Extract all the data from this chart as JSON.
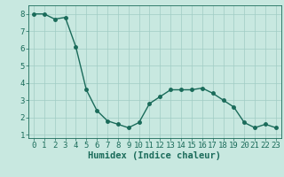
{
  "x": [
    0,
    1,
    2,
    3,
    4,
    5,
    6,
    7,
    8,
    9,
    10,
    11,
    12,
    13,
    14,
    15,
    16,
    17,
    18,
    19,
    20,
    21,
    22,
    23
  ],
  "y": [
    8.0,
    8.0,
    7.7,
    7.8,
    6.1,
    3.6,
    2.4,
    1.8,
    1.6,
    1.4,
    1.7,
    2.8,
    3.2,
    3.6,
    3.6,
    3.6,
    3.7,
    3.4,
    3.0,
    2.6,
    1.7,
    1.4,
    1.6,
    1.4
  ],
  "line_color": "#1a6b5a",
  "marker_color": "#1a6b5a",
  "bg_color": "#c8e8e0",
  "grid_color": "#a0ccc4",
  "xlabel": "Humidex (Indice chaleur)",
  "xlim": [
    -0.5,
    23.5
  ],
  "ylim": [
    0.8,
    8.5
  ],
  "yticks": [
    1,
    2,
    3,
    4,
    5,
    6,
    7,
    8
  ],
  "xticks": [
    0,
    1,
    2,
    3,
    4,
    5,
    6,
    7,
    8,
    9,
    10,
    11,
    12,
    13,
    14,
    15,
    16,
    17,
    18,
    19,
    20,
    21,
    22,
    23
  ],
  "tick_label_color": "#1a6b5a",
  "xlabel_color": "#1a6b5a",
  "font_size_tick": 6.5,
  "font_size_label": 7.5,
  "linewidth": 1.0,
  "markersize": 2.5
}
